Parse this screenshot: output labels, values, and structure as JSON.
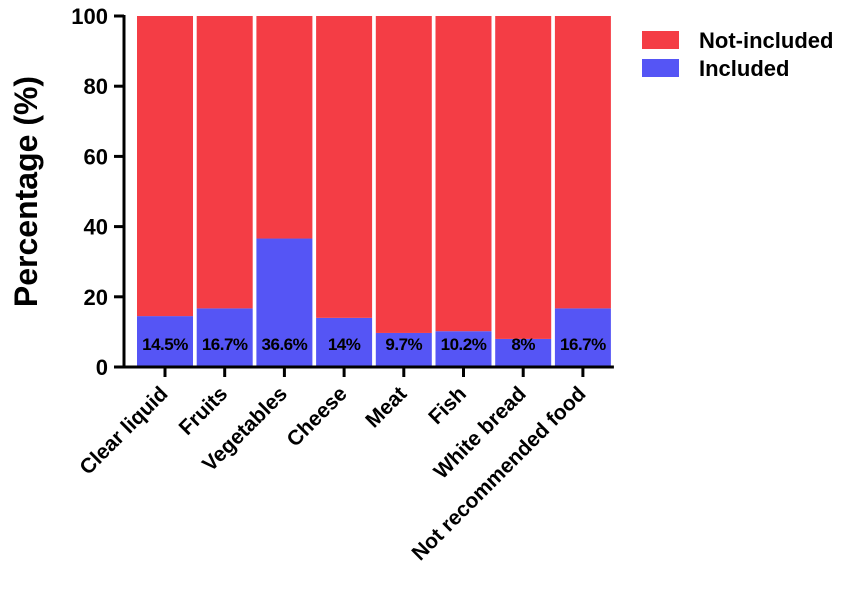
{
  "chart_data": {
    "type": "bar",
    "stacked": true,
    "title": "",
    "xlabel": "",
    "ylabel": "Percentage (%)",
    "ylim": [
      0,
      100
    ],
    "yticks": [
      "0",
      "20",
      "40",
      "60",
      "80",
      "100"
    ],
    "grid": false,
    "legend_position": "top-right",
    "categories": [
      "Clear liquid",
      "Fruits",
      "Vegetables",
      "Cheese",
      "Meat",
      "Fish",
      "White bread",
      "Not recommended food"
    ],
    "series": [
      {
        "name": "Included",
        "color": "#5555f5",
        "values": [
          14.5,
          16.7,
          36.6,
          14,
          9.7,
          10.2,
          8,
          16.7
        ],
        "data_labels": [
          "14.5%",
          "16.7%",
          "36.6%",
          "14%",
          "9.7%",
          "10.2%",
          "8%",
          "16.7%"
        ]
      },
      {
        "name": "Not-included",
        "color": "#f43d45",
        "values": [
          85.5,
          83.3,
          63.4,
          86,
          90.3,
          89.8,
          92,
          83.3
        ]
      }
    ],
    "legend_order": [
      "Not-included",
      "Included"
    ]
  }
}
